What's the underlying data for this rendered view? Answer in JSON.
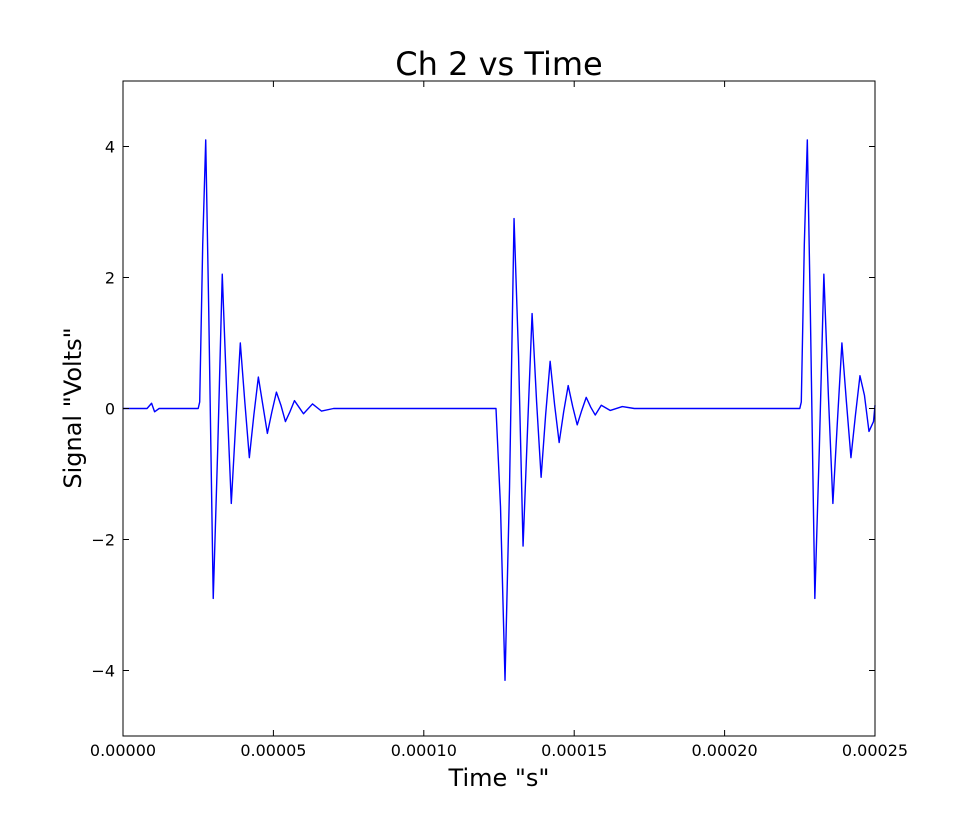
{
  "chart_data": {
    "type": "line",
    "title": "Ch 2 vs Time",
    "xlabel": "Time \"s\"",
    "ylabel": "Signal \"Volts\"",
    "xlim": [
      0,
      0.00025
    ],
    "ylim": [
      -5,
      5
    ],
    "xticks": [
      0,
      5e-05,
      0.0001,
      0.00015,
      0.0002,
      0.00025
    ],
    "xtick_labels": [
      "0.00000",
      "0.00005",
      "0.00010",
      "0.00015",
      "0.00020",
      "0.00025"
    ],
    "yticks": [
      -4,
      -2,
      0,
      2,
      4
    ],
    "ytick_labels": [
      "−4",
      "−2",
      "0",
      "2",
      "4"
    ],
    "grid": false,
    "colors": {
      "line": "#0000ff"
    },
    "series": [
      {
        "x": [
          0,
          8e-06,
          9.5e-06,
          1.05e-05,
          1.2e-05,
          2.5e-05,
          2.55e-05,
          2.65e-05,
          2.75e-05,
          2.85e-05,
          3e-05,
          3.15e-05,
          3.3e-05,
          3.45e-05,
          3.6e-05,
          3.75e-05,
          3.9e-05,
          4.05e-05,
          4.2e-05,
          4.35e-05,
          4.5e-05,
          4.65e-05,
          4.8e-05,
          4.95e-05,
          5.1e-05,
          5.25e-05,
          5.4e-05,
          5.55e-05,
          5.7e-05,
          5.85e-05,
          6e-05,
          6.3e-05,
          6.6e-05,
          7e-05,
          0.000124,
          0.0001255,
          0.000127,
          0.0001285,
          0.00013,
          0.0001315,
          0.000133,
          0.0001345,
          0.000136,
          0.0001375,
          0.000139,
          0.0001405,
          0.000142,
          0.0001435,
          0.000145,
          0.0001465,
          0.000148,
          0.0001495,
          0.000151,
          0.0001525,
          0.000154,
          0.0001555,
          0.000157,
          0.000159,
          0.000162,
          0.000166,
          0.00017,
          0.000225,
          0.0002255,
          0.0002265,
          0.0002275,
          0.0002285,
          0.00023,
          0.0002315,
          0.000233,
          0.0002345,
          0.000236,
          0.0002375,
          0.000239,
          0.0002405,
          0.000242,
          0.0002435,
          0.000245,
          0.0002465,
          0.000248,
          0.0002495,
          0.00025
        ],
        "y": [
          0,
          0,
          0.08,
          -0.05,
          0,
          0,
          0.1,
          2.5,
          4.1,
          1.5,
          -2.9,
          -0.6,
          2.05,
          0.2,
          -1.45,
          -0.2,
          1.0,
          0.1,
          -0.75,
          -0.1,
          0.48,
          0.05,
          -0.38,
          -0.05,
          0.25,
          0.05,
          -0.2,
          -0.05,
          0.12,
          0.02,
          -0.08,
          0.07,
          -0.04,
          0,
          0,
          -1.5,
          -4.15,
          -1.2,
          2.9,
          0.8,
          -2.1,
          -0.3,
          1.45,
          0.1,
          -1.05,
          -0.1,
          0.72,
          0.05,
          -0.52,
          -0.05,
          0.35,
          0.03,
          -0.25,
          -0.03,
          0.17,
          0.02,
          -0.1,
          0.05,
          -0.03,
          0.03,
          0,
          0,
          0.1,
          2.5,
          4.1,
          1.5,
          -2.9,
          -0.6,
          2.05,
          0.2,
          -1.45,
          -0.2,
          1.0,
          0.1,
          -0.75,
          -0.1,
          0.5,
          0.2,
          -0.35,
          -0.2,
          0.05
        ]
      }
    ]
  }
}
